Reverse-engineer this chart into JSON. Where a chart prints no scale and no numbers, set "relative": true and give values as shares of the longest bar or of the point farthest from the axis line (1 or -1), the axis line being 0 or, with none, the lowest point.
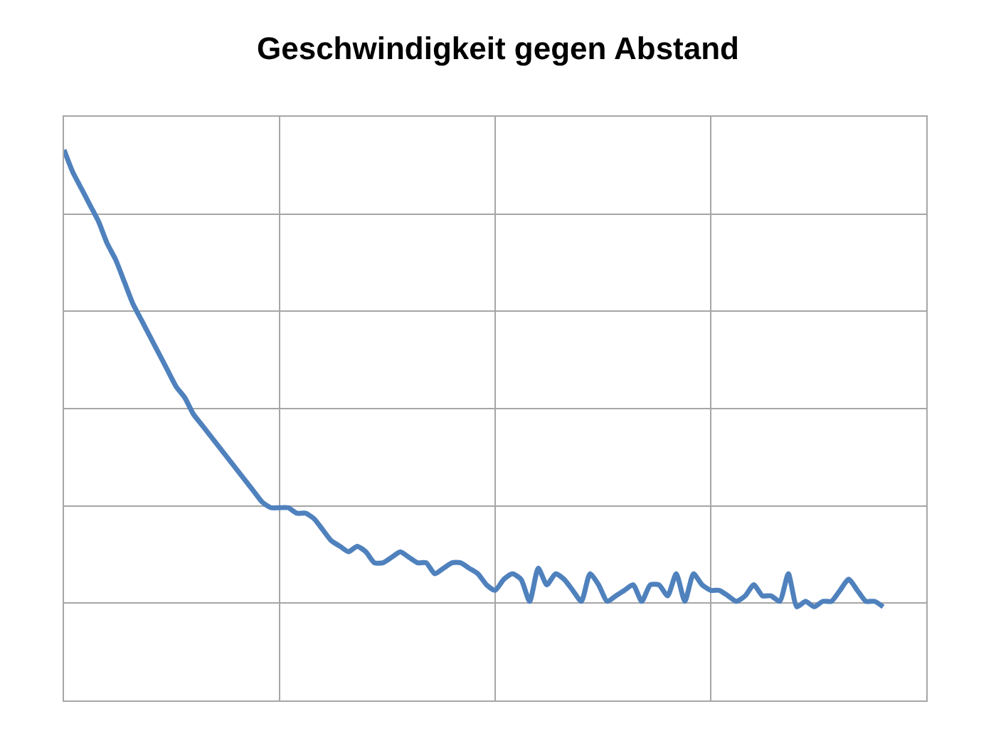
{
  "chart_data": {
    "type": "line",
    "title": "Geschwindigkeit gegen Abstand",
    "relative": true,
    "grid": true,
    "marker": "none",
    "line_style": "solid",
    "categories": [
      null,
      null,
      null,
      null,
      null,
      null,
      null,
      null,
      null,
      null,
      null,
      null,
      null,
      null,
      null,
      null,
      null,
      null,
      null,
      null,
      null,
      null,
      null,
      null,
      null,
      null,
      null,
      null,
      null,
      null,
      null,
      null,
      null,
      null,
      null,
      null,
      null,
      null,
      null,
      null,
      null,
      null,
      null,
      null,
      null,
      null,
      null,
      null,
      null,
      null,
      null,
      null,
      null,
      null,
      null,
      null,
      null,
      null,
      null,
      null,
      null,
      null,
      null,
      null,
      null,
      null,
      null,
      null,
      null,
      null,
      null,
      null,
      null,
      null,
      null,
      null,
      null,
      null,
      null,
      null,
      null,
      null,
      null,
      null,
      null,
      null,
      null,
      null,
      null,
      null,
      null,
      null,
      null,
      null,
      null,
      null,
      null,
      null,
      null,
      null,
      null
    ],
    "series": [
      {
        "color": "#4f81bd",
        "values": [
          1.0,
          0.96,
          0.93,
          0.9,
          0.87,
          0.83,
          0.8,
          0.76,
          0.72,
          0.69,
          0.66,
          0.63,
          0.6,
          0.57,
          0.55,
          0.52,
          0.5,
          0.48,
          0.46,
          0.44,
          0.42,
          0.4,
          0.38,
          0.36,
          0.35,
          0.35,
          0.35,
          0.34,
          0.34,
          0.33,
          0.31,
          0.29,
          0.28,
          0.27,
          0.28,
          0.27,
          0.25,
          0.25,
          0.26,
          0.27,
          0.26,
          0.25,
          0.25,
          0.23,
          0.24,
          0.25,
          0.25,
          0.24,
          0.23,
          0.21,
          0.2,
          0.22,
          0.23,
          0.22,
          0.18,
          0.24,
          0.21,
          0.23,
          0.22,
          0.2,
          0.18,
          0.23,
          0.21,
          0.18,
          0.19,
          0.2,
          0.21,
          0.18,
          0.21,
          0.21,
          0.19,
          0.23,
          0.18,
          0.23,
          0.21,
          0.2,
          0.2,
          0.19,
          0.18,
          0.19,
          0.21,
          0.19,
          0.19,
          0.18,
          0.23,
          0.17,
          0.18,
          0.17,
          0.18,
          0.18,
          0.2,
          0.22,
          0.2,
          0.18,
          0.18,
          0.17,
          null,
          null,
          null,
          null,
          null
        ]
      }
    ]
  }
}
